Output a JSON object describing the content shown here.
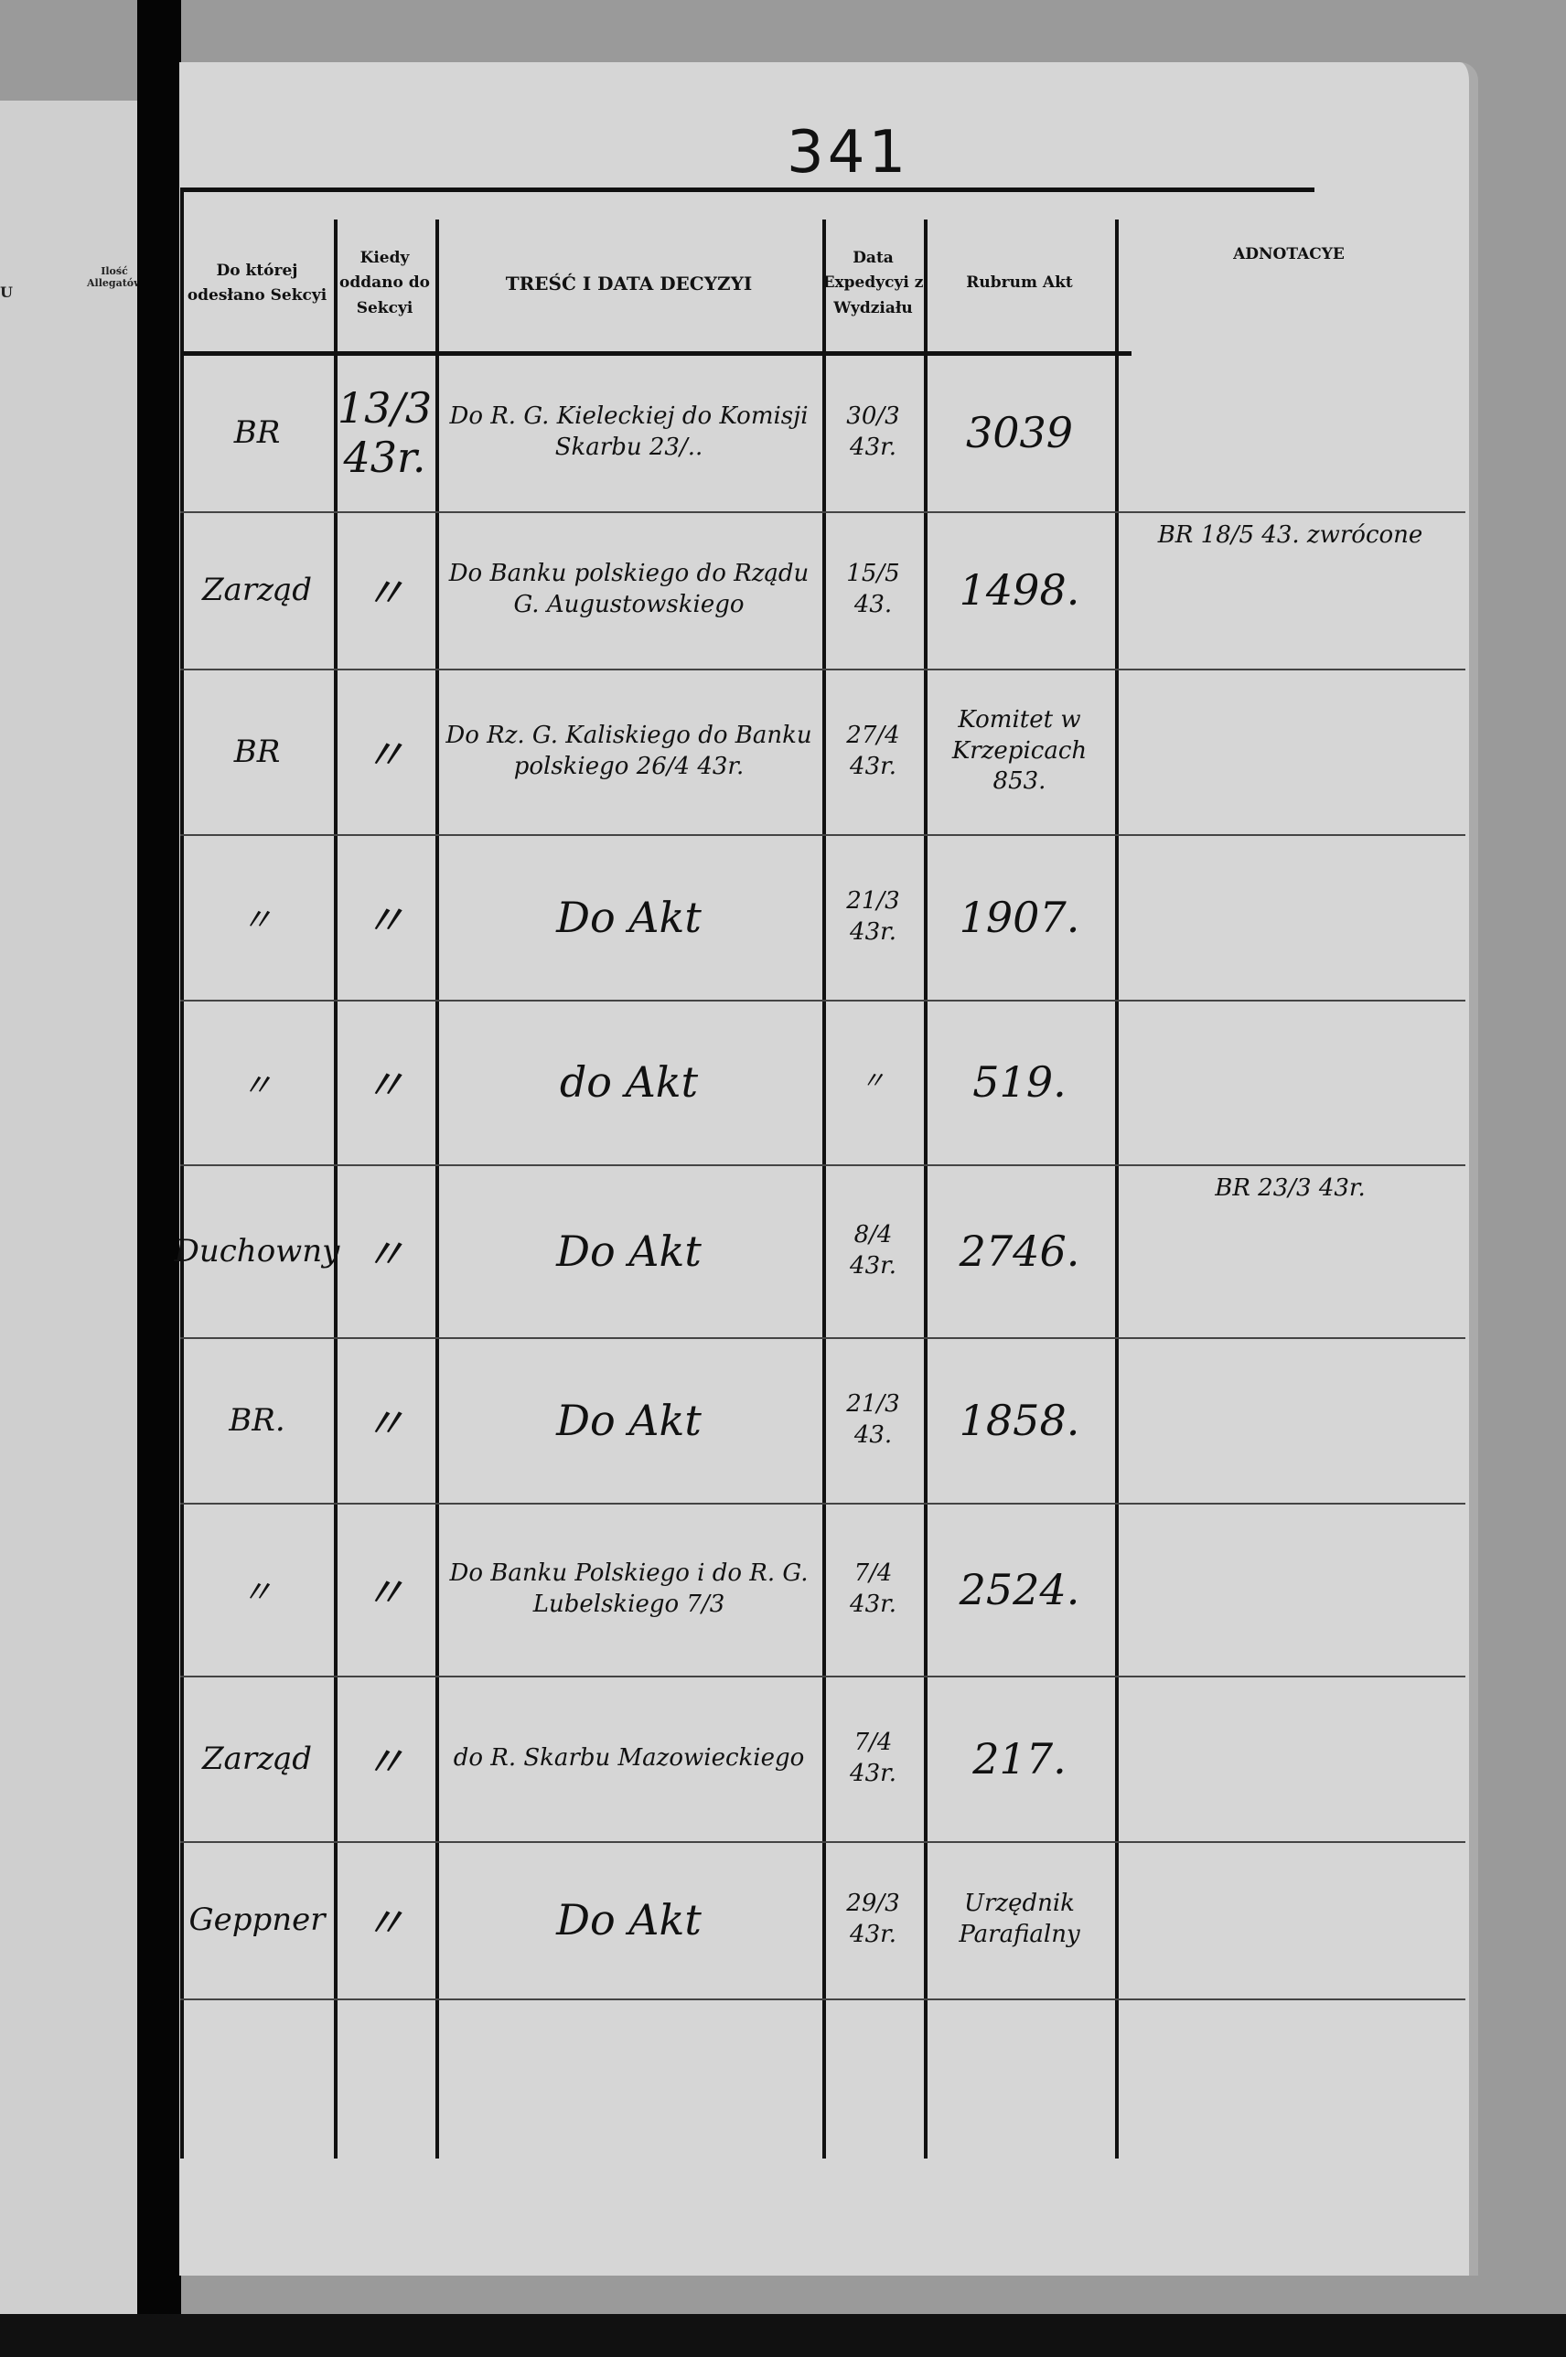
{
  "page_number": "341",
  "left_page": {
    "headers": [
      "U",
      "Ilość Allegatów"
    ]
  },
  "headers": {
    "section": "Do której odesłano Sekcyi",
    "when": "Kiedy oddano do Sekcyi",
    "content": "TREŚĆ I DATA DECYZYI",
    "expedition": "Data Expedycyi z Wydziału",
    "rubrum": "Rubrum Akt",
    "notes": "ADNOTACYE"
  },
  "rows": [
    {
      "section": "BR",
      "when": "13/3 43r.",
      "content": "Do R. G. Kieleckiej do Komisji Skarbu 23/..",
      "expedition": "30/3 43r.",
      "rubrum": "3039",
      "notes": ""
    },
    {
      "section": "Zarząd",
      "when": "〃",
      "content": "Do Banku polskiego do Rządu G. Augustowskiego",
      "expedition": "15/5 43.",
      "rubrum": "1498.",
      "notes": "BR 18/5 43. zwrócone"
    },
    {
      "section": "BR",
      "when": "〃",
      "content": "Do Rz. G. Kaliskiego do Banku polskiego 26/4 43r.",
      "expedition": "27/4 43r.",
      "rubrum": "Komitet w Krzepicach 853.",
      "notes": ""
    },
    {
      "section": "〃",
      "when": "〃",
      "content": "Do Akt",
      "expedition": "21/3 43r.",
      "rubrum": "1907.",
      "notes": ""
    },
    {
      "section": "〃",
      "when": "〃",
      "content": "do Akt",
      "expedition": "〃",
      "rubrum": "519.",
      "notes": ""
    },
    {
      "section": "Duchowny",
      "when": "〃",
      "content": "Do Akt",
      "expedition": "8/4 43r.",
      "rubrum": "2746.",
      "notes": "BR 23/3 43r."
    },
    {
      "section": "BR.",
      "when": "〃",
      "content": "Do Akt",
      "expedition": "21/3 43.",
      "rubrum": "1858.",
      "notes": ""
    },
    {
      "section": "〃",
      "when": "〃",
      "content": "Do Banku Polskiego i do R. G. Lubelskiego 7/3",
      "expedition": "7/4 43r.",
      "rubrum": "2524.",
      "notes": ""
    },
    {
      "section": "Zarząd",
      "when": "〃",
      "content": "do R. Skarbu Mazowieckiego",
      "expedition": "7/4 43r.",
      "rubrum": "217.",
      "notes": ""
    },
    {
      "section": "Geppner",
      "when": "〃",
      "content": "Do Akt",
      "expedition": "29/3 43r.",
      "rubrum": "Urzędnik Parafialny",
      "notes": ""
    }
  ]
}
